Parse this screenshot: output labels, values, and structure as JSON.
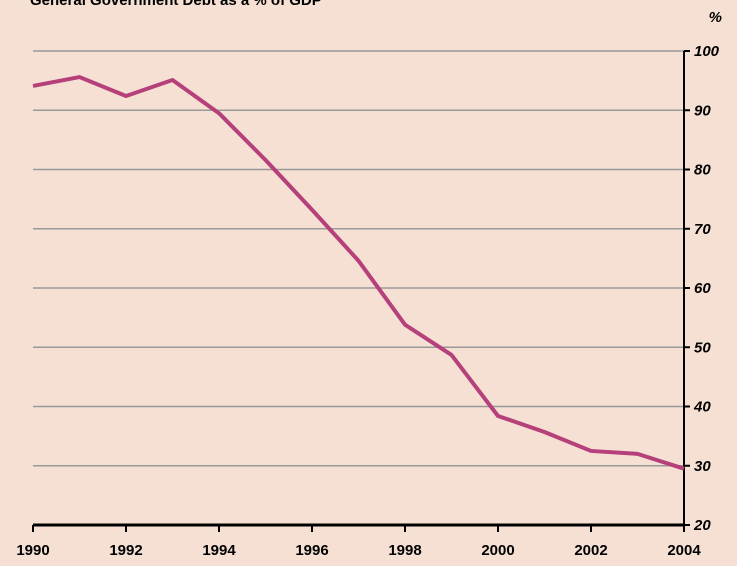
{
  "chart_data": {
    "type": "line",
    "title": "General Government Debt as a % of GDP",
    "y_unit": "%",
    "x": [
      1990,
      1991,
      1992,
      1993,
      1994,
      1995,
      1996,
      1997,
      1998,
      1999,
      2000,
      2001,
      2002,
      2003,
      2004
    ],
    "series": [
      {
        "name": "General Government Debt",
        "color": "#b5407a",
        "values": [
          94.1,
          95.6,
          92.4,
          95.1,
          89.5,
          81.6,
          73.2,
          64.6,
          53.8,
          48.7,
          38.4,
          35.7,
          32.5,
          32.0,
          29.5
        ]
      }
    ],
    "xlim": [
      1990,
      2004
    ],
    "xticks": [
      1990,
      1992,
      1994,
      1996,
      1998,
      2000,
      2002,
      2004
    ],
    "ylim": [
      20,
      100
    ],
    "yticks": [
      20,
      30,
      40,
      50,
      60,
      70,
      80,
      90,
      100
    ],
    "grid": true
  }
}
